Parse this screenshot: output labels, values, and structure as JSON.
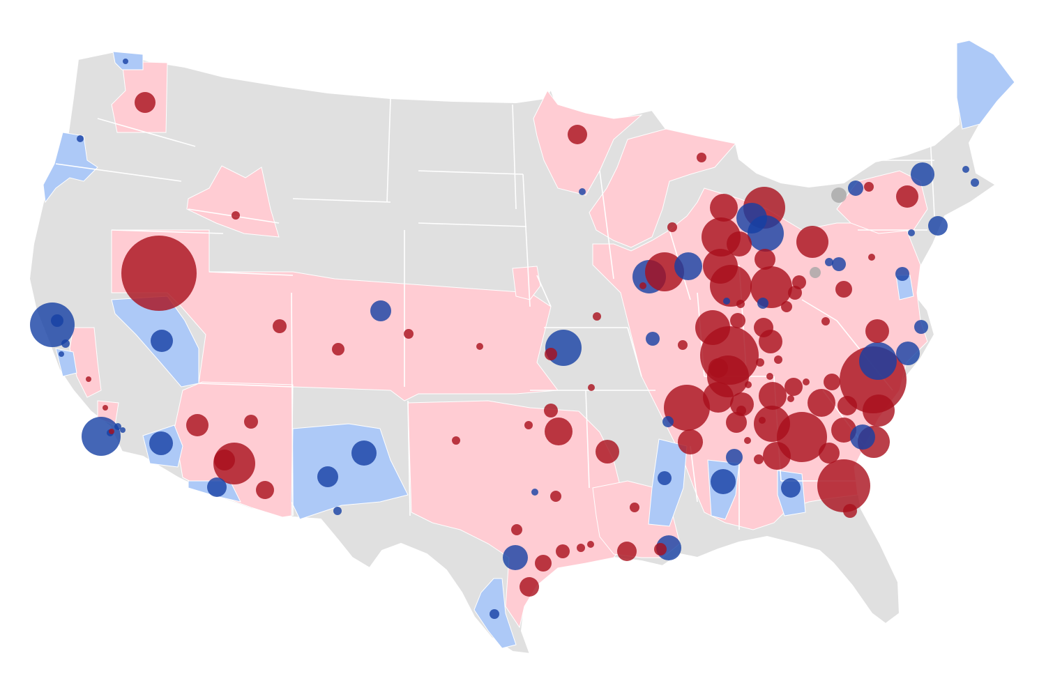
{
  "colors": {
    "background": "#ffffff",
    "base_fill": "#e0e0e0",
    "border": "#ffffff",
    "rep_shade": "#ffccd3",
    "dem_shade": "#adc9f7",
    "rep_bubble": "#a90f1c",
    "dem_bubble": "#1540a4",
    "neutral_bubble": "#a6a6a6"
  },
  "map": {
    "projection": "albers-usa",
    "bubble_opacity": 0.8
  }
}
